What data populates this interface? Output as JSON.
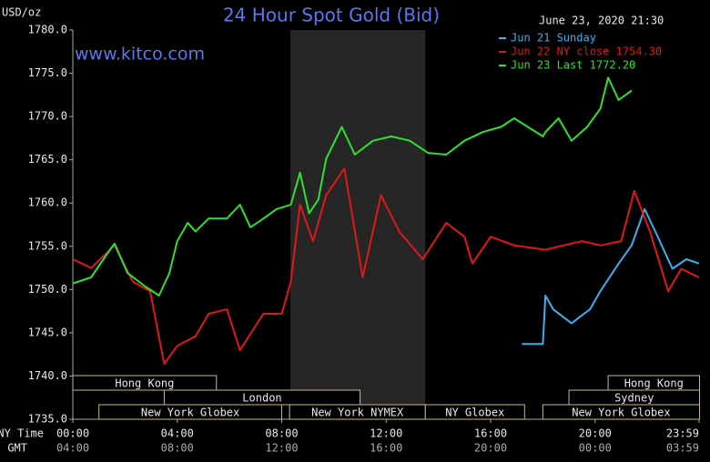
{
  "chart_data": {
    "type": "line",
    "title": "24 Hour Spot Gold (Bid)",
    "unit_label": "USD/oz",
    "timestamp": "June 23, 2020 21:30",
    "watermark": "www.kitco.com",
    "x_label": "NY Time",
    "x2_label": "GMT",
    "xlim": [
      0,
      23.983
    ],
    "xticks": [
      {
        "value": 0,
        "label": "00:00"
      },
      {
        "value": 4,
        "label": "04:00"
      },
      {
        "value": 8,
        "label": "08:00"
      },
      {
        "value": 12,
        "label": "12:00"
      },
      {
        "value": 16,
        "label": "16:00"
      },
      {
        "value": 20,
        "label": "20:00"
      },
      {
        "value": 23.983,
        "label": "23:59"
      }
    ],
    "x2ticks": [
      {
        "value": 0,
        "label": "04:00"
      },
      {
        "value": 4,
        "label": "08:00"
      },
      {
        "value": 8,
        "label": "12:00"
      },
      {
        "value": 12,
        "label": "16:00"
      },
      {
        "value": 16,
        "label": "20:00"
      },
      {
        "value": 20,
        "label": "00:00"
      },
      {
        "value": 23.983,
        "label": "03:59"
      }
    ],
    "ylim": [
      1735,
      1780
    ],
    "yticks": [
      {
        "value": 1735,
        "label": "1735.0"
      },
      {
        "value": 1740,
        "label": "1740.0"
      },
      {
        "value": 1745,
        "label": "1745.0"
      },
      {
        "value": 1750,
        "label": "1750.0"
      },
      {
        "value": 1755,
        "label": "1755.0"
      },
      {
        "value": 1760,
        "label": "1760.0"
      },
      {
        "value": 1765,
        "label": "1765.0"
      },
      {
        "value": 1770,
        "label": "1770.0"
      },
      {
        "value": 1775,
        "label": "1775.0"
      },
      {
        "value": 1780,
        "label": "1780.0"
      }
    ],
    "grid": false,
    "highlight": [
      8.33,
      13.5
    ],
    "sessions": [
      {
        "label": "Hong Kong",
        "start": 0,
        "end": 5.5
      },
      {
        "label": "Hong Kong",
        "start": 20.5,
        "end": 24
      },
      {
        "label": "London",
        "start": 3.5,
        "end": 11
      },
      {
        "label": "Sydney",
        "start": 19,
        "end": 24
      },
      {
        "label": "New York Globex",
        "start": 1,
        "end": 8
      },
      {
        "label": "New York NYMEX",
        "start": 8.3,
        "end": 13.5
      },
      {
        "label": "NY Globex",
        "start": 13.5,
        "end": 17.3
      },
      {
        "label": "New York Globex",
        "start": 18,
        "end": 24
      }
    ],
    "series": [
      {
        "name": "Jun 21 Sunday",
        "color": "#3ab0f0",
        "x": [
          17.2,
          18.0,
          18.1,
          18.4,
          19.1,
          19.8,
          20.2,
          20.9,
          21.4,
          21.9,
          22.4,
          22.96,
          23.5,
          23.983
        ],
        "values": [
          1743.7,
          1743.7,
          1749.3,
          1747.7,
          1746.1,
          1747.7,
          1749.8,
          1753.0,
          1755.1,
          1759.3,
          1756.1,
          1752.4,
          1753.5,
          1753.0
        ]
      },
      {
        "name": "Jun 22 NY close 1754.30",
        "color": "#e01818",
        "x": [
          0,
          0.7,
          1.6,
          2.3,
          2.96,
          3.5,
          4.0,
          4.7,
          5.2,
          5.9,
          6.4,
          7.3,
          8.0,
          8.35,
          8.7,
          9.2,
          9.7,
          10.4,
          11.1,
          11.8,
          12.5,
          13.4,
          14.3,
          15.0,
          15.3,
          16.0,
          16.9,
          18.1,
          19.5,
          20.2,
          21.0,
          21.5,
          22.1,
          22.8,
          23.3,
          23.983
        ],
        "values": [
          1753.5,
          1752.5,
          1755.1,
          1750.9,
          1749.8,
          1741.4,
          1743.5,
          1744.6,
          1747.2,
          1747.7,
          1743.0,
          1747.2,
          1747.2,
          1750.9,
          1759.8,
          1755.6,
          1760.9,
          1764.0,
          1751.4,
          1760.9,
          1756.7,
          1753.5,
          1757.7,
          1756.1,
          1753.0,
          1756.1,
          1755.1,
          1754.6,
          1755.6,
          1755.1,
          1755.6,
          1761.4,
          1756.7,
          1749.8,
          1752.4,
          1751.4
        ]
      },
      {
        "name": "Jun 23 Last 1772.20",
        "color": "#30e030",
        "x": [
          0,
          0.7,
          1.4,
          1.6,
          2.1,
          2.8,
          3.3,
          3.7,
          4.0,
          4.4,
          4.7,
          5.2,
          5.9,
          6.4,
          6.8,
          7.3,
          7.8,
          8.35,
          8.7,
          9.05,
          9.4,
          9.7,
          10.3,
          10.8,
          11.5,
          12.2,
          12.9,
          13.6,
          14.3,
          15.0,
          15.7,
          16.4,
          16.9,
          18.0,
          18.1,
          18.6,
          19.1,
          19.7,
          20.2,
          20.5,
          20.9,
          21.4
        ],
        "values": [
          1750.7,
          1751.4,
          1754.5,
          1755.3,
          1751.9,
          1750.3,
          1749.3,
          1751.9,
          1755.6,
          1757.7,
          1756.7,
          1758.2,
          1758.2,
          1759.8,
          1757.2,
          1758.2,
          1759.3,
          1759.8,
          1763.5,
          1758.8,
          1760.4,
          1765.1,
          1768.8,
          1765.6,
          1767.2,
          1767.7,
          1767.2,
          1765.8,
          1765.6,
          1767.2,
          1768.2,
          1768.8,
          1769.8,
          1767.7,
          1768.2,
          1769.8,
          1767.2,
          1768.8,
          1770.9,
          1774.5,
          1771.9,
          1773.0
        ]
      }
    ],
    "legend": "upper right"
  }
}
